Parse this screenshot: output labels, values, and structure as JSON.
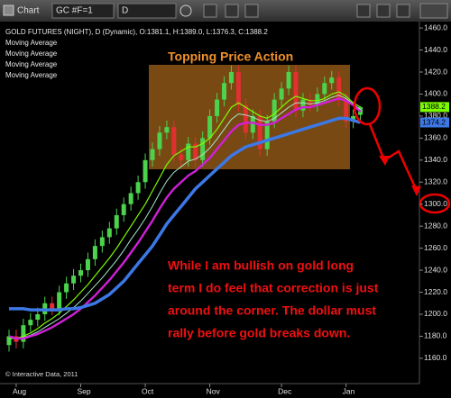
{
  "toolbar": {
    "title": "Chart",
    "symbol": "GC #F=1",
    "interval": "D"
  },
  "chart_data": {
    "type": "candlestick",
    "header": "GOLD FUTURES (NIGHT), D (Dynamic), O:1381.1, H:1389.0, L:1376.3, C:1388.2",
    "credit": "© Interactive Data, 2011",
    "annotations": {
      "title": "Topping Price Action",
      "note": [
        "While I am bullish on gold long",
        "term I do feel that correction is just",
        "around the corner. The dollar must",
        "rally before gold breaks down."
      ]
    },
    "categories": [
      null,
      "Aug",
      null,
      null,
      null,
      null,
      null,
      null,
      null,
      null,
      "Sep",
      null,
      null,
      null,
      null,
      null,
      null,
      null,
      null,
      "Oct",
      null,
      null,
      null,
      null,
      null,
      null,
      null,
      null,
      "Nov",
      null,
      null,
      null,
      null,
      null,
      null,
      null,
      null,
      null,
      "Dec",
      null,
      null,
      null,
      null,
      null,
      null,
      null,
      null,
      "Jan",
      null,
      null
    ],
    "open": [
      1172,
      1180,
      1175,
      1190,
      1195,
      1200,
      1210,
      1205,
      1220,
      1228,
      1235,
      1240,
      1250,
      1262,
      1270,
      1278,
      1290,
      1300,
      1310,
      1320,
      1340,
      1350,
      1365,
      1370,
      1345,
      1340,
      1355,
      1340,
      1360,
      1380,
      1395,
      1410,
      1420,
      1390,
      1365,
      1380,
      1350,
      1375,
      1395,
      1405,
      1420,
      1385,
      1395,
      1390,
      1400,
      1410,
      1415,
      1395,
      1375,
      1381.1
    ],
    "high": [
      1186,
      1186,
      1196,
      1201,
      1206,
      1216,
      1216,
      1226,
      1234,
      1241,
      1246,
      1256,
      1268,
      1276,
      1284,
      1296,
      1306,
      1316,
      1326,
      1346,
      1356,
      1371,
      1376,
      1376,
      1351,
      1361,
      1361,
      1366,
      1386,
      1401,
      1416,
      1426,
      1426,
      1396,
      1386,
      1386,
      1381,
      1401,
      1411,
      1426,
      1426,
      1401,
      1401,
      1406,
      1416,
      1421,
      1421,
      1401,
      1386,
      1389
    ],
    "low": [
      1166,
      1169,
      1169,
      1184,
      1189,
      1194,
      1199,
      1199,
      1214,
      1222,
      1229,
      1234,
      1244,
      1256,
      1264,
      1272,
      1284,
      1294,
      1304,
      1314,
      1334,
      1344,
      1359,
      1339,
      1334,
      1334,
      1334,
      1334,
      1354,
      1374,
      1389,
      1404,
      1384,
      1359,
      1359,
      1344,
      1344,
      1369,
      1389,
      1399,
      1379,
      1379,
      1384,
      1384,
      1394,
      1404,
      1389,
      1369,
      1369,
      1376.3
    ],
    "close": [
      1180,
      1175,
      1190,
      1195,
      1200,
      1210,
      1205,
      1220,
      1228,
      1235,
      1240,
      1250,
      1262,
      1270,
      1278,
      1290,
      1300,
      1310,
      1320,
      1340,
      1350,
      1365,
      1370,
      1345,
      1340,
      1355,
      1340,
      1360,
      1380,
      1395,
      1410,
      1420,
      1390,
      1365,
      1380,
      1350,
      1375,
      1395,
      1405,
      1420,
      1385,
      1395,
      1390,
      1400,
      1410,
      1415,
      1395,
      1375,
      1380,
      1388.2
    ],
    "up_color": "#4cd24c",
    "down_color": "#e03030",
    "series": [
      {
        "name": "Moving Average",
        "color": "#7CFC00",
        "last_label": true,
        "values": [
          1178,
          1178,
          1180,
          1183,
          1187,
          1192,
          1196,
          1201,
          1207,
          1213,
          1220,
          1227,
          1235,
          1243,
          1251,
          1260,
          1270,
          1280,
          1290,
          1300,
          1312,
          1324,
          1336,
          1344,
          1348,
          1352,
          1352,
          1355,
          1360,
          1368,
          1378,
          1388,
          1392,
          1388,
          1384,
          1380,
          1378,
          1382,
          1388,
          1394,
          1398,
          1396,
          1394,
          1394,
          1396,
          1400,
          1402,
          1398,
          1392,
          1388.2
        ]
      },
      {
        "name": "Moving Average",
        "color": "#a8e6c8",
        "last_label": false,
        "values": [
          1179,
          1178,
          1179,
          1181,
          1184,
          1188,
          1192,
          1196,
          1201,
          1206,
          1212,
          1219,
          1226,
          1233,
          1241,
          1249,
          1258,
          1268,
          1277,
          1287,
          1298,
          1310,
          1321,
          1329,
          1334,
          1339,
          1341,
          1345,
          1351,
          1359,
          1368,
          1377,
          1382,
          1381,
          1379,
          1376,
          1375,
          1378,
          1383,
          1388,
          1392,
          1392,
          1391,
          1392,
          1394,
          1397,
          1399,
          1396,
          1391,
          1386
        ]
      },
      {
        "name": "Moving Average",
        "color": "#d020d8",
        "last_label": false,
        "values": [
          1180,
          1178,
          1178,
          1180,
          1182,
          1185,
          1188,
          1192,
          1196,
          1200,
          1205,
          1211,
          1217,
          1224,
          1231,
          1239,
          1247,
          1256,
          1265,
          1275,
          1285,
          1296,
          1306,
          1314,
          1320,
          1326,
          1330,
          1336,
          1342,
          1350,
          1358,
          1366,
          1372,
          1374,
          1374,
          1372,
          1372,
          1374,
          1378,
          1382,
          1386,
          1388,
          1388,
          1390,
          1392,
          1394,
          1396,
          1394,
          1390,
          1384
        ]
      },
      {
        "name": "Moving Average",
        "color": "#3c78e6",
        "last_label": true,
        "values": [
          1205,
          1205,
          1205,
          1204,
          1204,
          1204,
          1204,
          1204,
          1205,
          1205,
          1206,
          1208,
          1210,
          1214,
          1218,
          1224,
          1230,
          1238,
          1246,
          1254,
          1262,
          1272,
          1282,
          1290,
          1298,
          1306,
          1314,
          1320,
          1326,
          1332,
          1338,
          1344,
          1348,
          1352,
          1354,
          1356,
          1358,
          1360,
          1362,
          1364,
          1366,
          1368,
          1370,
          1372,
          1374,
          1376,
          1378,
          1378,
          1376,
          1374.2
        ]
      }
    ],
    "ylim": [
      1137,
      1465
    ],
    "yticks": [
      {
        "value": 1160,
        "label": "1160.0"
      },
      {
        "value": 1180,
        "label": "1180.0"
      },
      {
        "value": 1200,
        "label": "1200.0"
      },
      {
        "value": 1220,
        "label": "1220.0"
      },
      {
        "value": 1240,
        "label": "1240.0"
      },
      {
        "value": 1260,
        "label": "1260.0"
      },
      {
        "value": 1280,
        "label": "1280.0"
      },
      {
        "value": 1300,
        "label": "1300.0"
      },
      {
        "value": 1320,
        "label": "1320.0"
      },
      {
        "value": 1340,
        "label": "1340.0"
      },
      {
        "value": 1360,
        "label": "1360.0"
      },
      {
        "value": 1380,
        "label": "1380.0"
      },
      {
        "value": 1400,
        "label": "1400.0"
      },
      {
        "value": 1420,
        "label": "1420.0"
      },
      {
        "value": 1440,
        "label": "1440.0"
      },
      {
        "value": 1460,
        "label": "1460.0"
      }
    ]
  }
}
